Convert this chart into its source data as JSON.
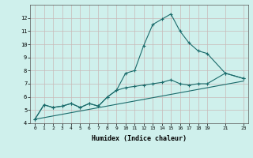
{
  "xlabel": "Humidex (Indice chaleur)",
  "bg_color": "#cff0ec",
  "grid_color": "#c8b8b8",
  "line_color": "#1a6b6b",
  "xlim": [
    -0.5,
    23.5
  ],
  "ylim": [
    4,
    13
  ],
  "xticks": [
    0,
    1,
    2,
    3,
    4,
    5,
    6,
    7,
    8,
    9,
    10,
    11,
    12,
    13,
    14,
    15,
    16,
    17,
    18,
    19,
    21,
    23
  ],
  "yticks": [
    4,
    5,
    6,
    7,
    8,
    9,
    10,
    11,
    12
  ],
  "line1_x": [
    0,
    1,
    2,
    3,
    4,
    5,
    6,
    7,
    8,
    9,
    10,
    11,
    12,
    13,
    14,
    15,
    16,
    17,
    18,
    19,
    21,
    23
  ],
  "line1_y": [
    4.3,
    5.4,
    5.2,
    5.3,
    5.5,
    5.2,
    5.5,
    5.3,
    6.0,
    6.5,
    7.8,
    8.0,
    9.9,
    11.5,
    11.9,
    12.3,
    11.0,
    10.1,
    9.5,
    9.3,
    7.8,
    7.4
  ],
  "line2_x": [
    0,
    1,
    2,
    3,
    4,
    5,
    6,
    7,
    8,
    9,
    10,
    11,
    12,
    13,
    14,
    15,
    16,
    17,
    18,
    19,
    21,
    23
  ],
  "line2_y": [
    4.3,
    5.4,
    5.2,
    5.3,
    5.5,
    5.2,
    5.5,
    5.3,
    6.0,
    6.5,
    6.7,
    6.8,
    6.9,
    7.0,
    7.1,
    7.3,
    7.0,
    6.9,
    7.0,
    7.0,
    7.8,
    7.4
  ],
  "line3_x": [
    0,
    23
  ],
  "line3_y": [
    4.3,
    7.2
  ]
}
